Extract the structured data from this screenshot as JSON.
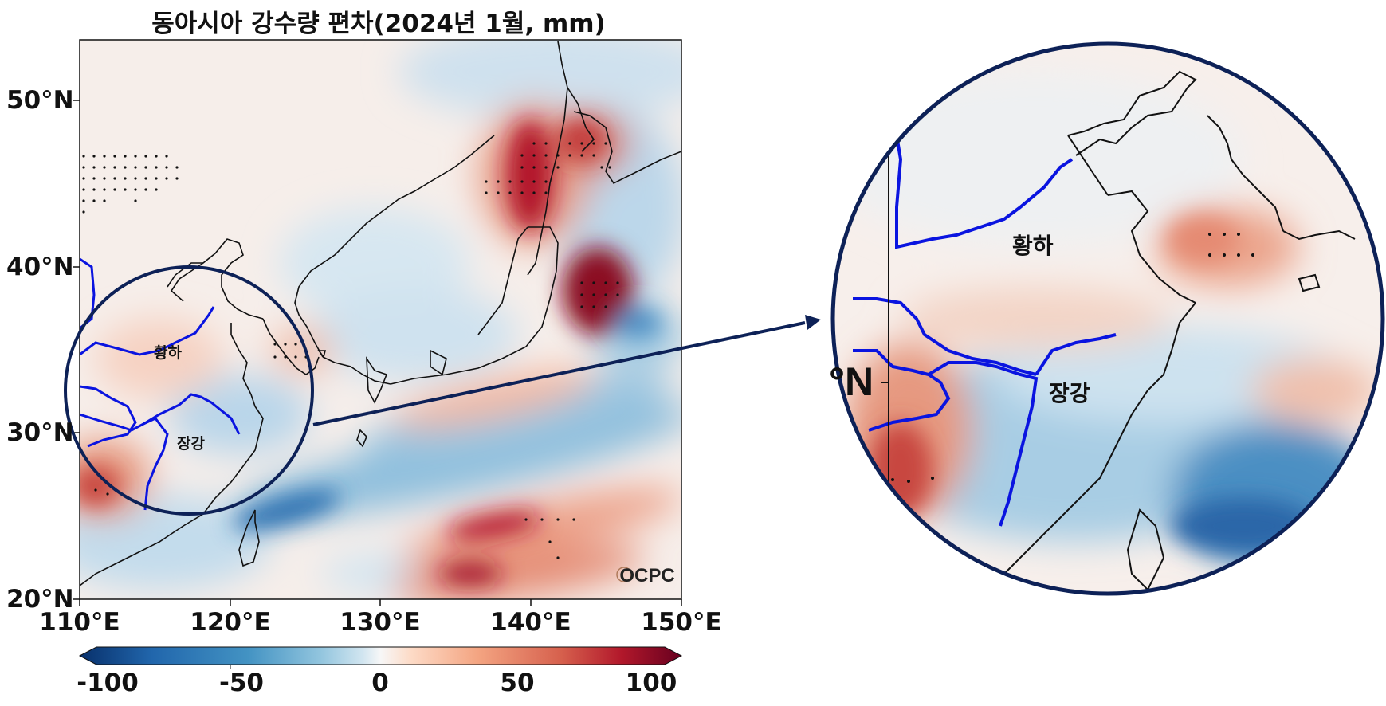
{
  "title": "동아시아 강수량 편차(2024년 1월, mm)",
  "map": {
    "lat_ticks": [
      "50°N",
      "40°N",
      "30°N",
      "20°N"
    ],
    "lon_ticks": [
      "110°E",
      "120°E",
      "130°E",
      "140°E",
      "150°E"
    ],
    "extent": {
      "lon": [
        110,
        150
      ],
      "lat": [
        20,
        53.5
      ]
    },
    "river_labels": {
      "yellow": "황하",
      "yangtze": "장강"
    },
    "watermark": "OCPC"
  },
  "colorbar": {
    "ticks": [
      "-100",
      "-50",
      "0",
      "50",
      "100"
    ],
    "range": [
      -100,
      100
    ],
    "colors": {
      "negative": "#08306b",
      "neutral": "#f7f7f7",
      "positive": "#67001f"
    }
  },
  "zoom": {
    "partial_lat_label": "°N",
    "river_labels": {
      "yellow": "황하",
      "yangtze": "장강"
    }
  },
  "colors": {
    "river": "#0a14e0",
    "circle": "#0d2157",
    "coast": "#111111"
  }
}
